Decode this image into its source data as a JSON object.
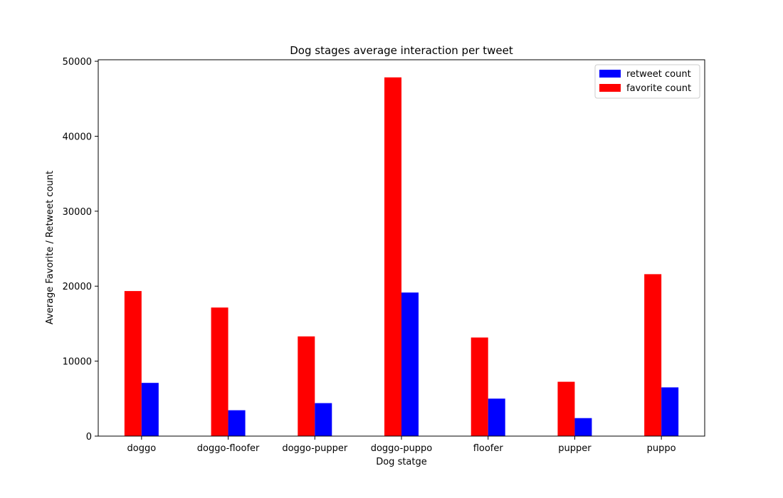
{
  "chart_data": {
    "type": "bar",
    "title": "Dog stages average interaction per tweet",
    "xlabel": "Dog statge",
    "ylabel": "Average Favorite / Retweet count",
    "categories": [
      "doggo",
      "doggo-floofer",
      "doggo-pupper",
      "doggo-puppo",
      "floofer",
      "pupper",
      "puppo"
    ],
    "series": [
      {
        "name": "retweet count",
        "color": "#0000ff",
        "values": [
          7100,
          3450,
          4400,
          19150,
          5000,
          2400,
          6500
        ]
      },
      {
        "name": "favorite count",
        "color": "#ff0000",
        "values": [
          19350,
          17150,
          13300,
          47850,
          13150,
          7250,
          21600
        ]
      }
    ],
    "ylim": [
      0,
      50200
    ],
    "yticks": [
      0,
      10000,
      20000,
      30000,
      40000,
      50000
    ],
    "grid": false,
    "legend": "top-right"
  }
}
